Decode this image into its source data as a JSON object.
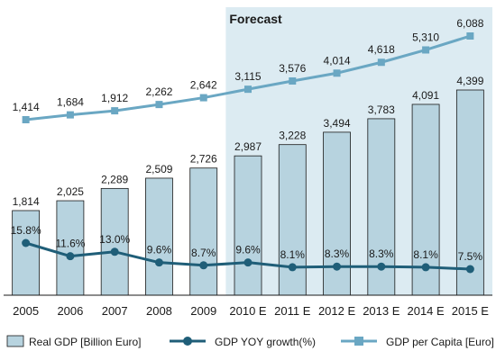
{
  "chart_data": {
    "type": "bar",
    "title": "",
    "categories": [
      "2005",
      "2006",
      "2007",
      "2008",
      "2009",
      "2010 E",
      "2011 E",
      "2012 E",
      "2013 E",
      "2014 E",
      "2015 E"
    ],
    "forecast_label": "Forecast",
    "forecast_start_category": "2010 E",
    "grid": false,
    "legend_position": "bottom",
    "series": [
      {
        "name": "Real GDP [Billion Euro]",
        "type": "bar",
        "values": [
          1814,
          2025,
          2289,
          2509,
          2726,
          2987,
          3228,
          3494,
          3783,
          4091,
          4399
        ],
        "labels": [
          "1,814",
          "2,025",
          "2,289",
          "2,509",
          "2,726",
          "2,987",
          "3,228",
          "3,494",
          "3,783",
          "4,091",
          "4,399"
        ]
      },
      {
        "name": "GDP YOY growth(%)",
        "type": "line",
        "values": [
          15.8,
          11.6,
          13.0,
          9.6,
          8.7,
          9.6,
          8.1,
          8.3,
          8.3,
          8.1,
          7.5
        ],
        "labels": [
          "15.8%",
          "11.6%",
          "13.0%",
          "9.6%",
          "8.7%",
          "9.6%",
          "8.1%",
          "8.3%",
          "8.3%",
          "8.1%",
          "7.5%"
        ]
      },
      {
        "name": "GDP per Capita [Euro]",
        "type": "line",
        "values": [
          1414,
          1684,
          1912,
          2262,
          2642,
          3115,
          3576,
          4014,
          4618,
          5310,
          6088
        ],
        "labels": [
          "1,414",
          "1,684",
          "1,912",
          "2,262",
          "2,642",
          "3,115",
          "3,576",
          "4,014",
          "4,618",
          "5,310",
          "6,088"
        ]
      }
    ],
    "colors": {
      "bar_fill": "#b7d3df",
      "bar_stroke": "#1a1a1a",
      "forecast_bg": "#dcebf2",
      "growth_line": "#1f5e78",
      "per_capita_line": "#6aa7c3"
    }
  }
}
